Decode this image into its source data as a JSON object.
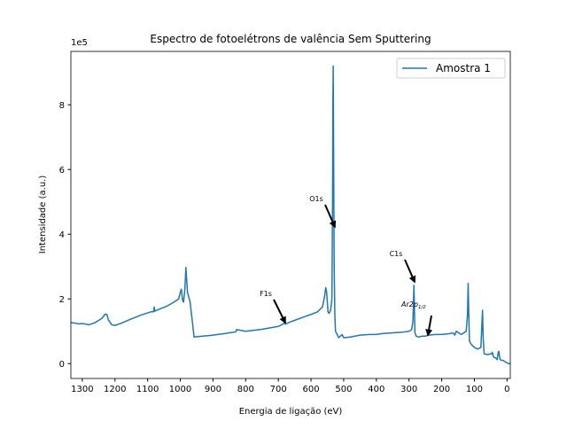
{
  "chart_data": {
    "type": "line",
    "title": "Espectro de fotoelétrons de valência Sem Sputtering",
    "x_label": "Energia de ligação (eV)",
    "y_label": "Intensidade (a.u.)",
    "offset_label": "1e5",
    "x": [
      1335,
      1310,
      1300,
      1280,
      1260,
      1240,
      1230,
      1225,
      1220,
      1210,
      1200,
      1180,
      1150,
      1120,
      1090,
      1082,
      1080,
      1078,
      1060,
      1040,
      1020,
      1005,
      1000,
      997,
      993,
      990,
      986,
      983,
      978,
      970,
      962,
      958,
      950,
      920,
      900,
      850,
      830,
      828,
      800,
      750,
      700,
      690,
      682,
      680,
      660,
      620,
      600,
      580,
      565,
      558,
      555,
      552,
      548,
      545,
      540,
      536,
      534,
      533,
      532,
      531,
      529,
      527,
      525,
      520,
      515,
      510,
      505,
      500,
      480,
      450,
      420,
      400,
      380,
      350,
      320,
      300,
      292,
      288,
      286,
      285,
      284,
      282,
      278,
      270,
      260,
      250,
      240,
      220,
      200,
      180,
      165,
      160,
      155,
      140,
      125,
      121,
      119,
      117,
      115,
      110,
      100,
      90,
      80,
      77,
      75,
      73,
      70,
      60,
      50,
      47,
      45,
      42,
      38,
      35,
      30,
      27,
      25,
      22,
      18,
      12,
      5,
      0,
      -5,
      -10
    ],
    "series": [
      {
        "name": "Amostra 1",
        "color": "#1f77b4",
        "values": [
          1.27,
          1.23,
          1.24,
          1.2,
          1.27,
          1.4,
          1.53,
          1.52,
          1.35,
          1.2,
          1.18,
          1.25,
          1.38,
          1.5,
          1.6,
          1.6,
          1.75,
          1.62,
          1.7,
          1.78,
          1.9,
          2.0,
          2.2,
          2.3,
          1.95,
          1.9,
          2.3,
          2.97,
          2.2,
          1.9,
          1.2,
          0.82,
          0.83,
          0.86,
          0.88,
          0.95,
          0.98,
          1.05,
          1.0,
          1.06,
          1.15,
          1.2,
          1.25,
          1.22,
          1.3,
          1.45,
          1.52,
          1.6,
          1.75,
          2.1,
          2.35,
          2.2,
          1.6,
          1.55,
          1.65,
          2.0,
          5.0,
          8.0,
          9.2,
          7.0,
          3.0,
          1.5,
          1.0,
          0.9,
          0.8,
          0.85,
          0.9,
          0.8,
          0.82,
          0.88,
          0.9,
          0.9,
          0.93,
          0.95,
          0.97,
          1.0,
          1.05,
          1.3,
          2.0,
          2.42,
          2.0,
          0.95,
          0.85,
          0.82,
          0.85,
          0.85,
          0.88,
          0.9,
          0.9,
          0.92,
          0.95,
          0.88,
          1.0,
          0.9,
          1.0,
          1.5,
          2.48,
          1.5,
          0.7,
          0.6,
          0.5,
          0.45,
          0.5,
          1.2,
          1.65,
          0.8,
          0.3,
          0.28,
          0.3,
          0.3,
          0.35,
          0.22,
          0.18,
          0.18,
          0.12,
          0.35,
          0.38,
          0.15,
          0.1,
          0.1,
          0.05,
          0.02,
          0.0,
          0.0
        ]
      }
    ],
    "xlim": [
      1335,
      -10
    ],
    "ylim": [
      -0.46,
      9.65
    ],
    "xticks": [
      1300,
      1200,
      1100,
      1000,
      900,
      800,
      700,
      600,
      500,
      400,
      300,
      200,
      100,
      0
    ],
    "yticks": [
      0,
      2,
      4,
      6,
      8
    ],
    "legend": "upper right",
    "annotations": [
      {
        "text": "O1s"
      },
      {
        "text": "C1s"
      },
      {
        "text": "F1s"
      },
      {
        "text": "Ar2p",
        "subscript": "1/2"
      }
    ]
  }
}
